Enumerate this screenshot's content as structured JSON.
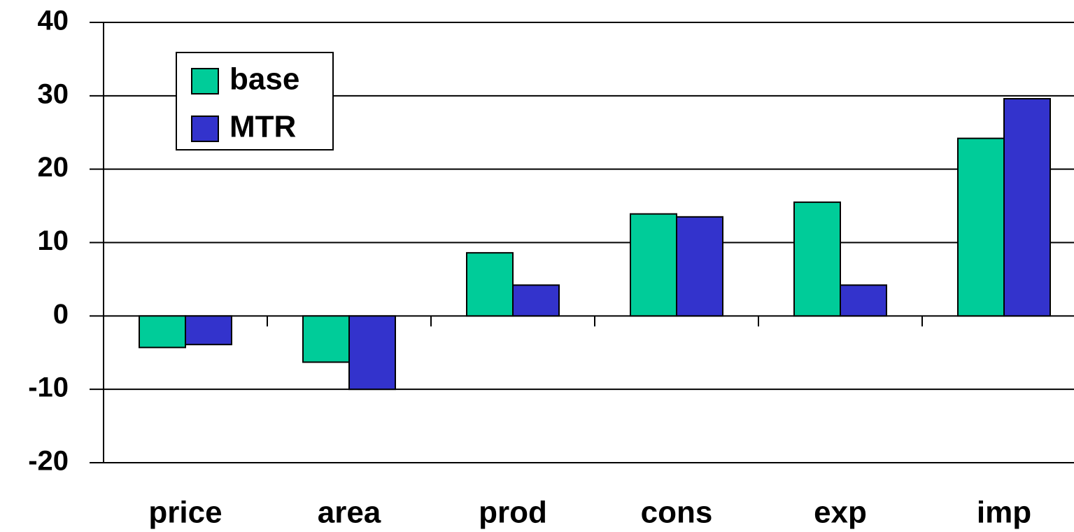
{
  "chart_data": {
    "type": "bar",
    "categories": [
      "price",
      "area",
      "prod",
      "cons",
      "exp",
      "imp"
    ],
    "series": [
      {
        "name": "base",
        "color": "#00cc99",
        "values": [
          -4.3,
          -6.3,
          8.6,
          13.9,
          15.5,
          24.2
        ]
      },
      {
        "name": "MTR",
        "color": "#3333cc",
        "values": [
          -3.9,
          -10,
          4.2,
          13.5,
          4.2,
          29.6
        ]
      }
    ],
    "ylim": [
      -20,
      40
    ],
    "yticks": [
      -20,
      -10,
      0,
      10,
      20,
      30,
      40
    ],
    "grid": true,
    "legend": "upper left"
  }
}
